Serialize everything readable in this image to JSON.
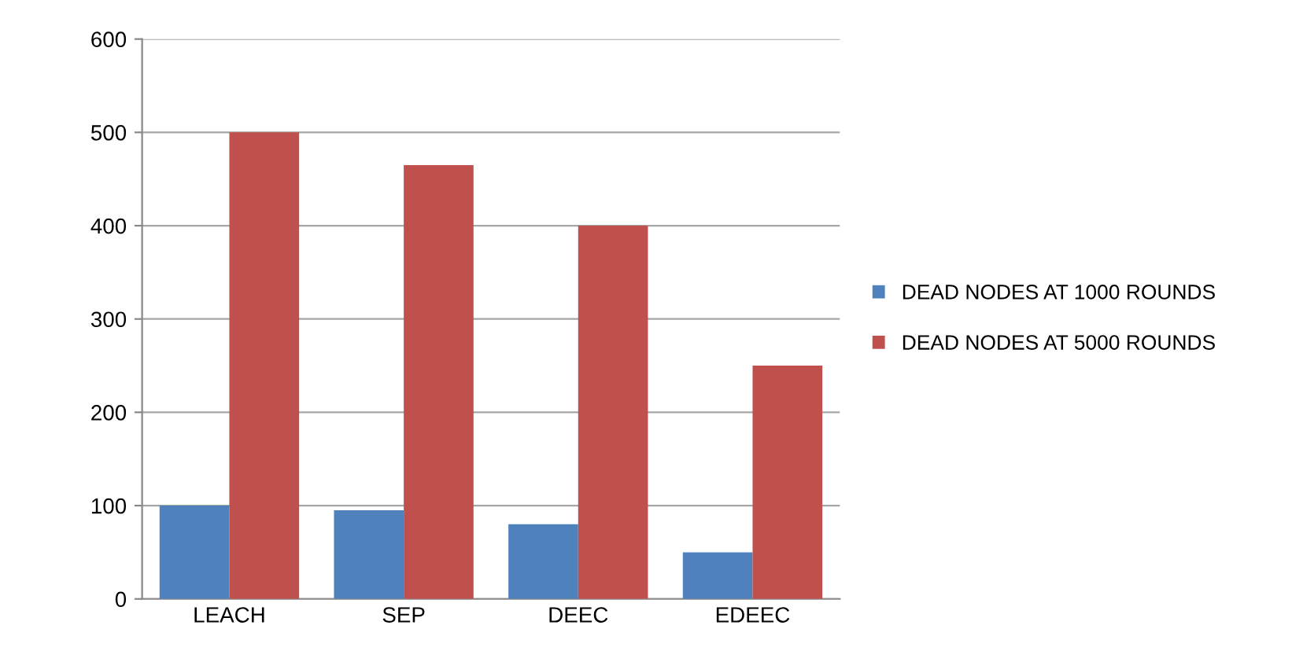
{
  "chart_data": {
    "type": "bar",
    "categories": [
      "LEACH",
      "SEP",
      "DEEC",
      "EDEEC"
    ],
    "series": [
      {
        "name": "DEAD NODES AT 1000 ROUNDS",
        "color": "#4f81bd",
        "values": [
          100,
          95,
          80,
          50
        ]
      },
      {
        "name": "DEAD NODES AT 5000 ROUNDS",
        "color": "#c0504d",
        "values": [
          500,
          465,
          400,
          250
        ]
      }
    ],
    "ylim": [
      0,
      600
    ],
    "yticks": [
      0,
      100,
      200,
      300,
      400,
      500,
      600
    ],
    "grid": "y",
    "legend": "right"
  }
}
